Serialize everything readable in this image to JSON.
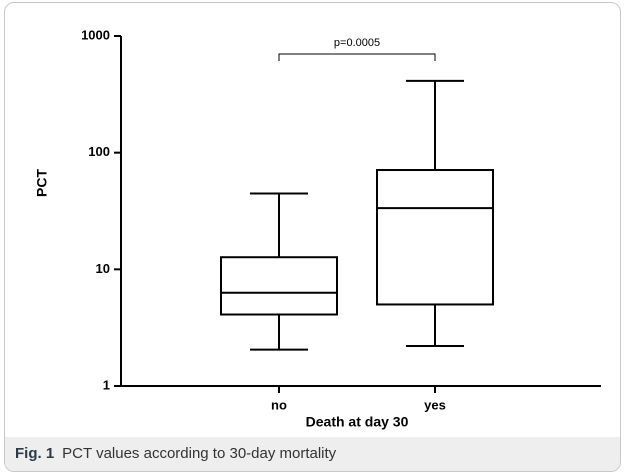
{
  "chart_data": {
    "type": "box",
    "ylabel": "PCT",
    "xlabel": "Death at day 30",
    "categories": [
      "no",
      "yes"
    ],
    "boxes": [
      {
        "min": 2.05,
        "q1": 4.1,
        "median": 6.3,
        "q3": 12.7,
        "max": 44.7
      },
      {
        "min": 2.2,
        "q1": 5.0,
        "median": 33.5,
        "q3": 71,
        "max": 412
      }
    ],
    "yscale": "log",
    "ylim": [
      1,
      1000
    ],
    "yticks": [
      1,
      10,
      100,
      1000
    ],
    "annotation": "p=0.0005",
    "color": "#000000"
  },
  "caption": {
    "label": "Fig. 1",
    "text": "PCT values according to 30-day mortality"
  }
}
